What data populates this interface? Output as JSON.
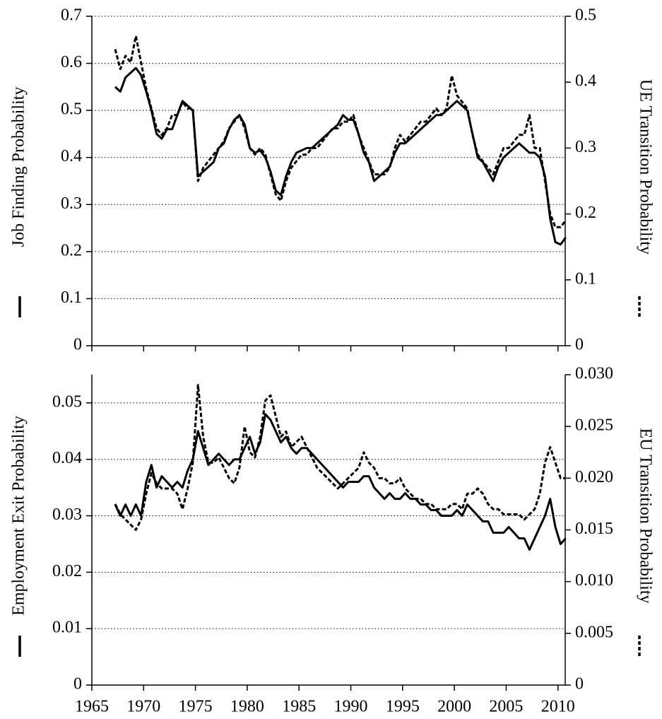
{
  "chart_data": [
    {
      "type": "line",
      "ylabel": "Job Finding Probability",
      "y2label": "UE Transition Probability",
      "grid": true,
      "xlim": [
        1965,
        2010.7
      ],
      "ylim": [
        0,
        0.7
      ],
      "yticks": [
        0,
        0.1,
        0.2,
        0.3,
        0.4,
        0.5,
        0.6,
        0.7
      ],
      "y2lim": [
        0,
        0.5
      ],
      "y2ticks": [
        0,
        0.1,
        0.2,
        0.3,
        0.4,
        0.5
      ],
      "x": [
        1967.25,
        1967.75,
        1968.25,
        1968.75,
        1969.25,
        1969.75,
        1970.25,
        1970.75,
        1971.25,
        1971.75,
        1972.25,
        1972.75,
        1973.25,
        1973.75,
        1974.25,
        1974.75,
        1975.25,
        1975.75,
        1976.25,
        1976.75,
        1977.25,
        1977.75,
        1978.25,
        1978.75,
        1979.25,
        1979.75,
        1980.25,
        1980.75,
        1981.25,
        1981.75,
        1982.25,
        1982.75,
        1983.25,
        1983.75,
        1984.25,
        1984.75,
        1985.25,
        1985.75,
        1986.25,
        1986.75,
        1987.25,
        1987.75,
        1988.25,
        1988.75,
        1989.25,
        1989.75,
        1990.25,
        1990.75,
        1991.25,
        1991.75,
        1992.25,
        1992.75,
        1993.25,
        1993.75,
        1994.25,
        1994.75,
        1995.25,
        1995.75,
        1996.25,
        1996.75,
        1997.25,
        1997.75,
        1998.25,
        1998.75,
        1999.25,
        1999.75,
        2000.25,
        2000.75,
        2001.25,
        2001.75,
        2002.25,
        2002.75,
        2003.25,
        2003.75,
        2004.25,
        2004.75,
        2005.25,
        2005.75,
        2006.25,
        2006.75,
        2007.25,
        2007.75,
        2008.25,
        2008.75,
        2009.25,
        2009.75,
        2010.25,
        2010.75
      ],
      "series": [
        {
          "color": "#000000",
          "style": "solid",
          "values": [
            0.55,
            0.54,
            0.57,
            0.58,
            0.59,
            0.575,
            0.54,
            0.5,
            0.45,
            0.44,
            0.46,
            0.46,
            0.49,
            0.52,
            0.51,
            0.5,
            0.36,
            0.37,
            0.38,
            0.39,
            0.42,
            0.43,
            0.46,
            0.48,
            0.49,
            0.47,
            0.42,
            0.41,
            0.415,
            0.4,
            0.37,
            0.33,
            0.32,
            0.36,
            0.39,
            0.41,
            0.415,
            0.42,
            0.42,
            0.43,
            0.44,
            0.45,
            0.46,
            0.47,
            0.49,
            0.48,
            0.48,
            0.45,
            0.41,
            0.39,
            0.35,
            0.36,
            0.37,
            0.38,
            0.41,
            0.43,
            0.43,
            0.44,
            0.45,
            0.46,
            0.47,
            0.48,
            0.49,
            0.49,
            0.5,
            0.51,
            0.52,
            0.51,
            0.5,
            0.45,
            0.4,
            0.39,
            0.37,
            0.35,
            0.38,
            0.4,
            0.41,
            0.42,
            0.43,
            0.42,
            0.41,
            0.41,
            0.4,
            0.36,
            0.27,
            0.22,
            0.215,
            0.23
          ]
        },
        {
          "color": "#000000",
          "style": "dashed",
          "axis": "y2",
          "values": [
            0.45,
            0.42,
            0.44,
            0.43,
            0.47,
            0.43,
            0.39,
            0.36,
            0.33,
            0.32,
            0.33,
            0.35,
            0.35,
            0.37,
            0.36,
            0.36,
            0.25,
            0.27,
            0.28,
            0.29,
            0.3,
            0.31,
            0.33,
            0.34,
            0.35,
            0.33,
            0.3,
            0.29,
            0.3,
            0.29,
            0.26,
            0.23,
            0.22,
            0.25,
            0.27,
            0.28,
            0.29,
            0.29,
            0.3,
            0.3,
            0.31,
            0.32,
            0.33,
            0.33,
            0.34,
            0.34,
            0.35,
            0.32,
            0.3,
            0.28,
            0.26,
            0.26,
            0.26,
            0.27,
            0.3,
            0.32,
            0.31,
            0.32,
            0.33,
            0.34,
            0.34,
            0.35,
            0.36,
            0.35,
            0.36,
            0.41,
            0.38,
            0.37,
            0.36,
            0.32,
            0.29,
            0.28,
            0.27,
            0.26,
            0.28,
            0.3,
            0.3,
            0.31,
            0.32,
            0.32,
            0.35,
            0.3,
            0.3,
            0.25,
            0.2,
            0.18,
            0.18,
            0.19
          ]
        }
      ]
    },
    {
      "type": "line",
      "ylabel": "Employment Exit Probability",
      "y2label": "EU Transition Probability",
      "grid": true,
      "xlim": [
        1965,
        2010.7
      ],
      "xticks": [
        1965,
        1970,
        1975,
        1980,
        1985,
        1990,
        1995,
        2000,
        2005,
        2010
      ],
      "ylim": [
        0,
        0.055
      ],
      "yticks": [
        0,
        0.01,
        0.02,
        0.03,
        0.04,
        0.05
      ],
      "y2lim": [
        0,
        0.03
      ],
      "y2ticks": [
        0,
        0.005,
        {
          "value": 0.01,
          "label": "0.010"
        },
        0.015,
        {
          "value": 0.02,
          "label": "0.020"
        },
        0.025,
        {
          "value": 0.03,
          "label": "0.030"
        }
      ],
      "x": [
        1967.25,
        1967.75,
        1968.25,
        1968.75,
        1969.25,
        1969.75,
        1970.25,
        1970.75,
        1971.25,
        1971.75,
        1972.25,
        1972.75,
        1973.25,
        1973.75,
        1974.25,
        1974.75,
        1975.25,
        1975.75,
        1976.25,
        1976.75,
        1977.25,
        1977.75,
        1978.25,
        1978.75,
        1979.25,
        1979.75,
        1980.25,
        1980.75,
        1981.25,
        1981.75,
        1982.25,
        1982.75,
        1983.25,
        1983.75,
        1984.25,
        1984.75,
        1985.25,
        1985.75,
        1986.25,
        1986.75,
        1987.25,
        1987.75,
        1988.25,
        1988.75,
        1989.25,
        1989.75,
        1990.25,
        1990.75,
        1991.25,
        1991.75,
        1992.25,
        1992.75,
        1993.25,
        1993.75,
        1994.25,
        1994.75,
        1995.25,
        1995.75,
        1996.25,
        1996.75,
        1997.25,
        1997.75,
        1998.25,
        1998.75,
        1999.25,
        1999.75,
        2000.25,
        2000.75,
        2001.25,
        2001.75,
        2002.25,
        2002.75,
        2003.25,
        2003.75,
        2004.25,
        2004.75,
        2005.25,
        2005.75,
        2006.25,
        2006.75,
        2007.25,
        2007.75,
        2008.25,
        2008.75,
        2009.25,
        2009.75,
        2010.25,
        2010.75
      ],
      "series": [
        {
          "color": "#000000",
          "style": "solid",
          "values": [
            0.032,
            0.03,
            0.032,
            0.03,
            0.032,
            0.03,
            0.036,
            0.039,
            0.035,
            0.037,
            0.036,
            0.035,
            0.036,
            0.035,
            0.038,
            0.04,
            0.045,
            0.042,
            0.039,
            0.04,
            0.041,
            0.04,
            0.039,
            0.04,
            0.04,
            0.042,
            0.044,
            0.041,
            0.043,
            0.048,
            0.047,
            0.045,
            0.043,
            0.044,
            0.042,
            0.041,
            0.042,
            0.042,
            0.041,
            0.04,
            0.039,
            0.038,
            0.037,
            0.036,
            0.035,
            0.036,
            0.036,
            0.036,
            0.037,
            0.037,
            0.035,
            0.034,
            0.033,
            0.034,
            0.033,
            0.033,
            0.034,
            0.033,
            0.033,
            0.032,
            0.032,
            0.031,
            0.031,
            0.03,
            0.03,
            0.03,
            0.031,
            0.03,
            0.032,
            0.031,
            0.03,
            0.029,
            0.029,
            0.027,
            0.027,
            0.027,
            0.028,
            0.027,
            0.026,
            0.026,
            0.024,
            0.026,
            0.028,
            0.03,
            0.033,
            0.028,
            0.025,
            0.026
          ]
        },
        {
          "color": "#000000",
          "style": "dashed",
          "axis": "y2",
          "values": [
            0.0175,
            0.0165,
            0.016,
            0.0155,
            0.015,
            0.016,
            0.0185,
            0.0205,
            0.0195,
            0.019,
            0.019,
            0.019,
            0.0185,
            0.017,
            0.019,
            0.0215,
            0.029,
            0.024,
            0.0215,
            0.0215,
            0.022,
            0.021,
            0.02,
            0.0195,
            0.021,
            0.025,
            0.0225,
            0.022,
            0.024,
            0.0275,
            0.028,
            0.026,
            0.024,
            0.0245,
            0.023,
            0.0235,
            0.024,
            0.023,
            0.022,
            0.021,
            0.0205,
            0.02,
            0.0195,
            0.019,
            0.0195,
            0.02,
            0.0205,
            0.021,
            0.0225,
            0.0215,
            0.021,
            0.02,
            0.02,
            0.0195,
            0.0195,
            0.02,
            0.019,
            0.0185,
            0.018,
            0.018,
            0.0175,
            0.0175,
            0.017,
            0.017,
            0.017,
            0.0175,
            0.0175,
            0.017,
            0.0185,
            0.0185,
            0.019,
            0.0185,
            0.0175,
            0.017,
            0.017,
            0.0165,
            0.0165,
            0.0165,
            0.0165,
            0.016,
            0.0165,
            0.017,
            0.0185,
            0.0215,
            0.023,
            0.0215,
            0.02,
            0.02
          ]
        }
      ]
    }
  ]
}
